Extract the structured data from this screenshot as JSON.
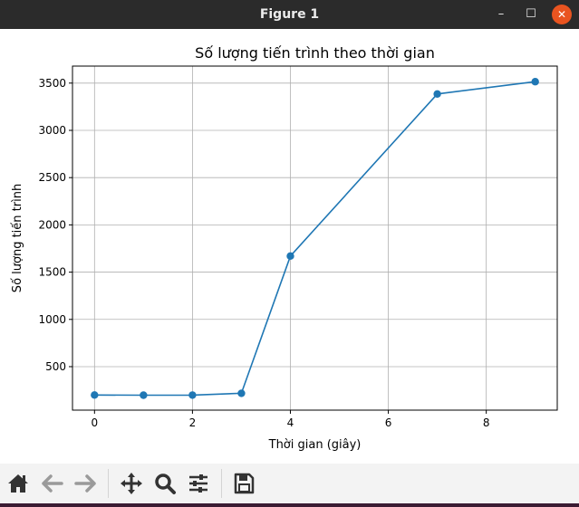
{
  "window": {
    "title": "Figure 1",
    "minimize_glyph": "–",
    "maximize_glyph": "☐",
    "close_glyph": "✕",
    "close_color": "#e95420"
  },
  "toolbar": {
    "buttons": [
      {
        "name": "home",
        "icon": "home-icon",
        "enabled": true
      },
      {
        "name": "back",
        "icon": "arrow-left-icon",
        "enabled": false
      },
      {
        "name": "forward",
        "icon": "arrow-right-icon",
        "enabled": false
      },
      {
        "name": "pan",
        "icon": "move-icon",
        "enabled": true
      },
      {
        "name": "zoom",
        "icon": "magnifier-icon",
        "enabled": true
      },
      {
        "name": "configure-subplots",
        "icon": "sliders-icon",
        "enabled": true
      },
      {
        "name": "save",
        "icon": "floppy-disk-icon",
        "enabled": true
      }
    ]
  },
  "chart_data": {
    "type": "line",
    "title": "Số lượng tiến trình theo thời gian",
    "xlabel": "Thời gian (giây)",
    "ylabel": "Số lượng tiến trình",
    "x": [
      0,
      1,
      2,
      3,
      4,
      7,
      9
    ],
    "series": [
      {
        "values": [
          200,
          198,
          199,
          218,
          1670,
          3385,
          3515
        ]
      }
    ],
    "xlim": [
      -0.45,
      9.45
    ],
    "ylim": [
      40,
      3680
    ],
    "xticks": [
      0,
      2,
      4,
      6,
      8
    ],
    "xtick_labels": [
      "0",
      "2",
      "4",
      "6",
      "8"
    ],
    "yticks": [
      500,
      1000,
      1500,
      2000,
      2500,
      3000,
      3500
    ],
    "ytick_labels": [
      "500",
      "1000",
      "1500",
      "2000",
      "2500",
      "3000",
      "3500"
    ],
    "grid": true,
    "line_color": "#1f77b4",
    "marker": "circle"
  }
}
